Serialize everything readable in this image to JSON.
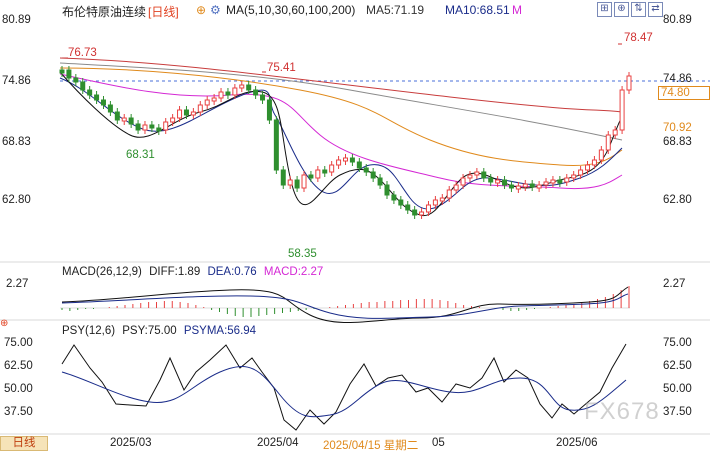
{
  "header": {
    "title": "布伦特原油连续",
    "period": "[日线]",
    "add_symbol": "⊕",
    "ma_label": "MA(5,10,30,60,100,200)",
    "ma5": "MA5:71.19",
    "ma10": "MA10:68.51",
    "more": "M",
    "tools": [
      "⊞",
      "⊕",
      "⇅",
      "⇄"
    ]
  },
  "price_axis": {
    "left": [
      "80.89",
      "74.86",
      "68.83",
      "62.80"
    ],
    "right": [
      "80.89",
      "74.86",
      "68.83",
      "62.80"
    ],
    "tag_current": "74.80",
    "tag_ma": "70.92",
    "scale_top": 80.89,
    "scale_bottom": 62.8
  },
  "annotations": {
    "high_early": "76.73",
    "high_mid": "75.41",
    "low_march": "68.31",
    "low_april": "58.35",
    "high_june": "78.47"
  },
  "macd": {
    "title": "MACD(26,12,9)",
    "diff": "DIFF:1.89",
    "dea": "DEA:0.76",
    "macd": "MACD:2.27",
    "axis_top": "2.27"
  },
  "psy": {
    "title": "PSY(12,6)",
    "psy": "PSY:75.00",
    "psyma": "PSYMA:56.94",
    "ticks": [
      "75.00",
      "62.50",
      "50.00",
      "37.50"
    ]
  },
  "footer": {
    "period_tab": "日线",
    "dates": [
      "2025/03",
      "2025/04",
      "2025/04/15 星期二",
      "05",
      "2025/06"
    ]
  },
  "watermark": "FX678",
  "colors": {
    "up": "#e84040",
    "down": "#2f8f2f",
    "ma_blue": "#1a2c8a",
    "ma_magenta": "#d428d4",
    "ma_orange": "#e08a1c"
  }
}
